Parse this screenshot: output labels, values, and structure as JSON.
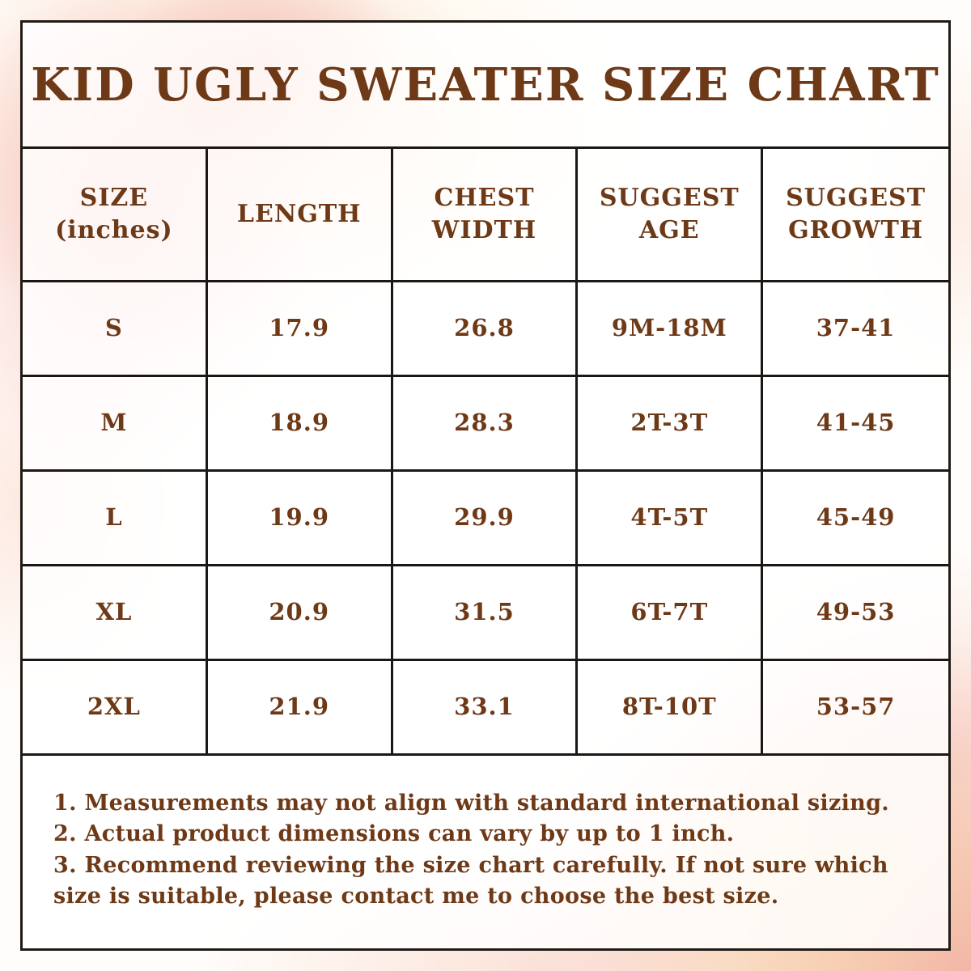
{
  "title": "KID UGLY SWEATER SIZE CHART",
  "table": {
    "headers": [
      "SIZE\n(inches)",
      "LENGTH",
      "CHEST\nWIDTH",
      "SUGGEST\nAGE",
      "SUGGEST\nGROWTH"
    ],
    "rows": [
      [
        "S",
        "17.9",
        "26.8",
        "9M-18M",
        "37-41"
      ],
      [
        "M",
        "18.9",
        "28.3",
        "2T-3T",
        "41-45"
      ],
      [
        "L",
        "19.9",
        "29.9",
        "4T-5T",
        "45-49"
      ],
      [
        "XL",
        "20.9",
        "31.5",
        "6T-7T",
        "49-53"
      ],
      [
        "2XL",
        "21.9",
        "33.1",
        "8T-10T",
        "53-57"
      ]
    ]
  },
  "notes": [
    "1. Measurements may not align with standard international sizing.",
    "2. Actual product dimensions can vary by up to 1 inch.",
    "3. Recommend reviewing the size chart carefully. If not sure which size is suitable, please contact me to choose the best size."
  ],
  "colors": {
    "text_brown": "#6e3917",
    "grid_border": "#1a1714",
    "wash_peach": "#f5c2ab",
    "wash_pink": "#f1a49a",
    "wash_cream": "#fae3b9"
  }
}
